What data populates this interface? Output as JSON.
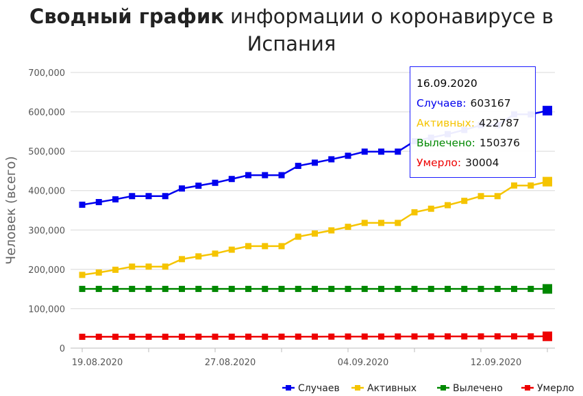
{
  "title": {
    "bold": "Сводный график",
    "rest": " информации о коронавирусе в Испания"
  },
  "chart_data": {
    "type": "line",
    "title": "Сводный график информации о коронавирусе в Испания",
    "ylabel": "Человек (всего)",
    "xlabel": "",
    "ylim": [
      0,
      700000
    ],
    "y_ticks": [
      "0",
      "100,000",
      "200,000",
      "300,000",
      "400,000",
      "500,000",
      "600,000",
      "700,000"
    ],
    "x_tick_labels": [
      {
        "index": 0,
        "label": "19.08.2020"
      },
      {
        "index": 8,
        "label": "27.08.2020"
      },
      {
        "index": 16,
        "label": "04.09.2020"
      },
      {
        "index": 24,
        "label": "12.09.2020"
      }
    ],
    "categories": [
      "19.08.2020",
      "20.08.2020",
      "21.08.2020",
      "22.08.2020",
      "23.08.2020",
      "24.08.2020",
      "25.08.2020",
      "26.08.2020",
      "27.08.2020",
      "28.08.2020",
      "29.08.2020",
      "30.08.2020",
      "31.08.2020",
      "01.09.2020",
      "02.09.2020",
      "03.09.2020",
      "04.09.2020",
      "05.09.2020",
      "06.09.2020",
      "07.09.2020",
      "08.09.2020",
      "09.09.2020",
      "10.09.2020",
      "11.09.2020",
      "12.09.2020",
      "13.09.2020",
      "14.09.2020",
      "15.09.2020",
      "16.09.2020"
    ],
    "grid": true,
    "legend_position": "bottom-right",
    "series": [
      {
        "name": "Случаев",
        "color": "#0000ee",
        "values": [
          364196,
          370867,
          377906,
          386054,
          386054,
          386054,
          405436,
          412553,
          419849,
          429507,
          439286,
          439286,
          439286,
          462858,
          470973,
          479554,
          488513,
          498989,
          498989,
          498989,
          525549,
          534513,
          543379,
          554143,
          566326,
          566326,
          593730,
          593730,
          603167
        ]
      },
      {
        "name": "Активных",
        "color": "#f5c400",
        "values": [
          186000,
          192000,
          199000,
          207000,
          207000,
          207000,
          226000,
          233000,
          240000,
          250000,
          259000,
          259000,
          259000,
          283000,
          291000,
          299000,
          308000,
          318000,
          318000,
          318000,
          345000,
          354000,
          363000,
          374000,
          386000,
          386000,
          413000,
          413000,
          422787
        ]
      },
      {
        "name": "Вылечено",
        "color": "#008800",
        "values": [
          150376,
          150376,
          150376,
          150376,
          150376,
          150376,
          150376,
          150376,
          150376,
          150376,
          150376,
          150376,
          150376,
          150376,
          150376,
          150376,
          150376,
          150376,
          150376,
          150376,
          150376,
          150376,
          150376,
          150376,
          150376,
          150376,
          150376,
          150376,
          150376
        ]
      },
      {
        "name": "Умерло",
        "color": "#ee0000",
        "values": [
          28797,
          28813,
          28838,
          28872,
          28872,
          28872,
          28924,
          28971,
          28996,
          29011,
          29011,
          29011,
          29094,
          29152,
          29194,
          29234,
          29418,
          29418,
          29418,
          29516,
          29594,
          29699,
          29747,
          29747,
          29747,
          29848,
          29848,
          29848,
          30004
        ]
      }
    ]
  },
  "tooltip": {
    "date": "16.09.2020",
    "rows": [
      {
        "label": "Случаев:",
        "value": "603167",
        "color": "#0000ee"
      },
      {
        "label": "Активных:",
        "value": "422787",
        "color": "#f5c400"
      },
      {
        "label": "Вылечено:",
        "value": "150376",
        "color": "#008800"
      },
      {
        "label": "Умерло:",
        "value": "30004",
        "color": "#ee0000"
      }
    ]
  },
  "colors": {
    "grid": "#d8d8d8",
    "axis": "#bbbbbb"
  }
}
